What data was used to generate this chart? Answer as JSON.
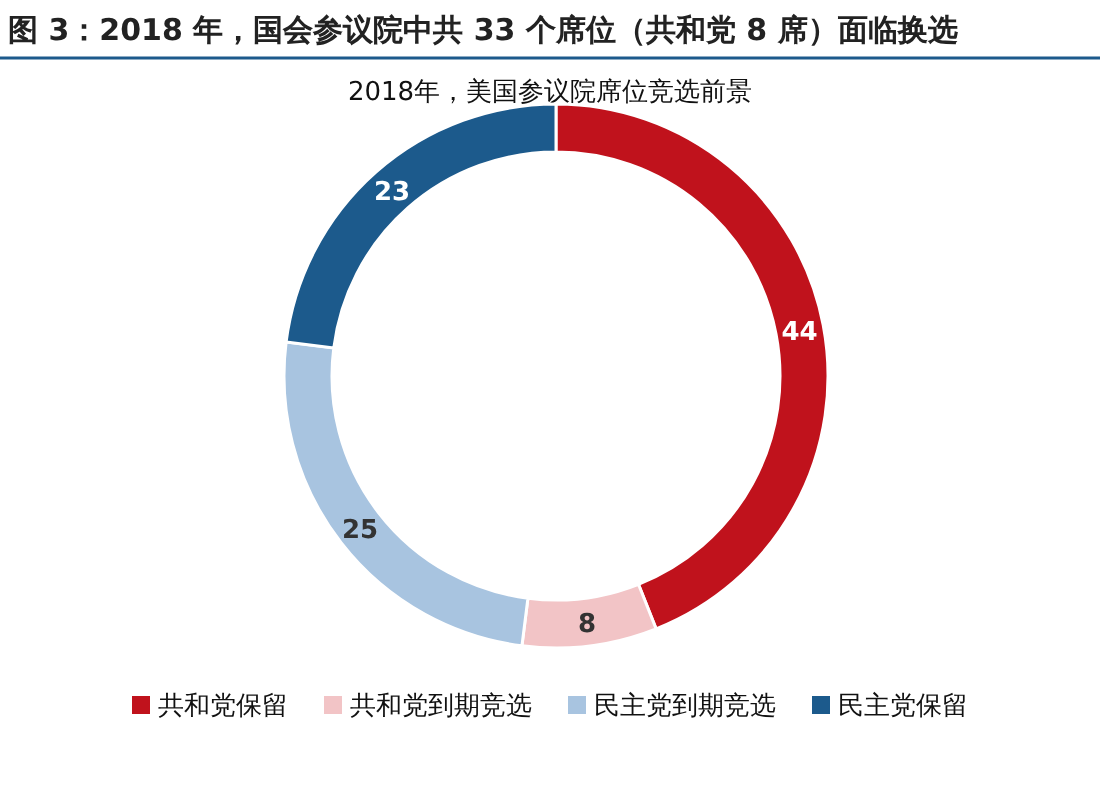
{
  "chart_data": {
    "type": "donut",
    "title": "图 3：2018 年，国会参议院中共 33 个席位（共和党 8 席）面临换选",
    "subtitle": "2018年，美国参议院席位竞选前景",
    "categories": [
      "共和党保留",
      "共和党到期竞选",
      "民主党到期竞选",
      "民主党保留"
    ],
    "values": [
      44,
      8,
      25,
      23
    ],
    "colors": [
      "#c0121c",
      "#f2c4c6",
      "#a8c4e0",
      "#1c5a8c"
    ],
    "data_labels": true,
    "legend": "bottom"
  }
}
